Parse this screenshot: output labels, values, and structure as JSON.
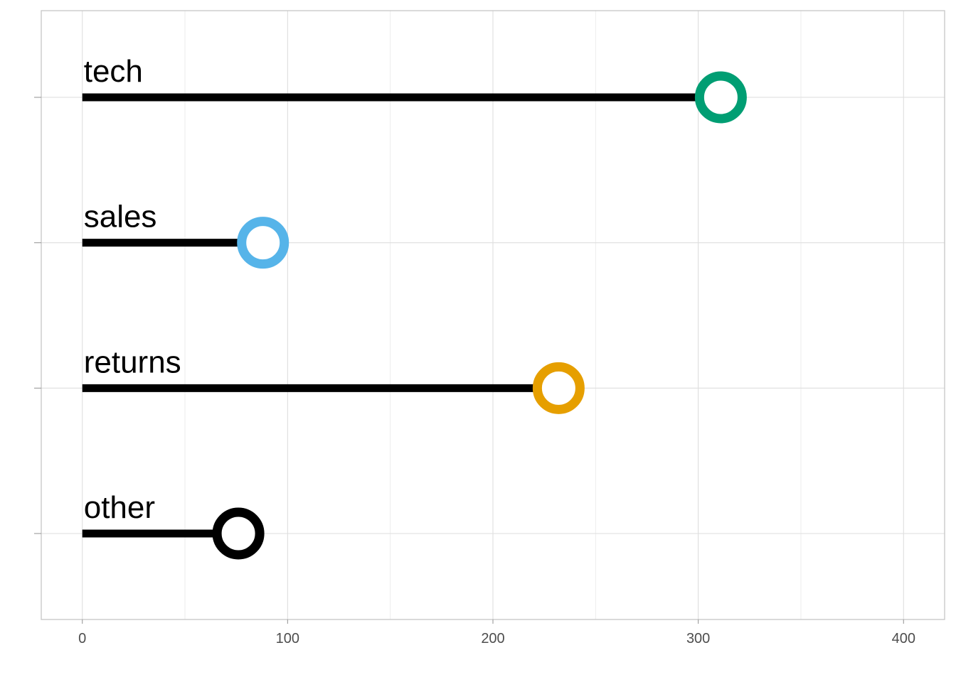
{
  "chart_data": {
    "type": "lollipop",
    "categories": [
      "tech",
      "sales",
      "returns",
      "other"
    ],
    "values": [
      311,
      88,
      232,
      76
    ],
    "point_colors": [
      "#009E73",
      "#56B4E9",
      "#E69F00",
      "#000000"
    ],
    "stem_color": "#000000",
    "point_fill": "#ffffff",
    "xlim": [
      -20,
      420
    ],
    "x_ticks": [
      0,
      100,
      200,
      300,
      400
    ],
    "x_tick_labels": [
      "0",
      "100",
      "200",
      "300",
      "400"
    ],
    "x_minor_ticks": [
      50,
      150,
      250,
      350
    ],
    "title": "",
    "xlabel": "",
    "ylabel": "",
    "grid": true,
    "legend": "none"
  }
}
